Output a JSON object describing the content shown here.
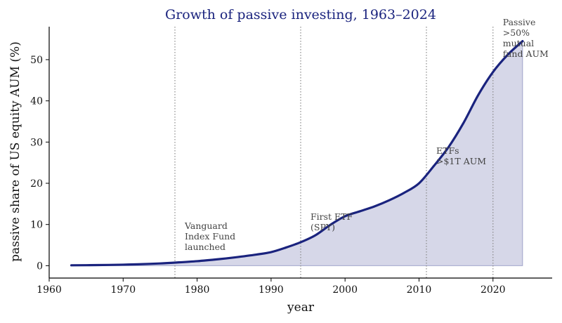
{
  "chart_data": {
    "type": "area",
    "title": "Growth of passive investing, 1963–2024",
    "xlabel": "year",
    "ylabel": "passive share of US equity AUM (%)",
    "xlim": [
      1960,
      2028
    ],
    "ylim": [
      -3,
      58
    ],
    "xticks": [
      1960,
      1970,
      1980,
      1990,
      2000,
      2010,
      2020
    ],
    "yticks": [
      0,
      10,
      20,
      30,
      40,
      50
    ],
    "grid": false,
    "colors": {
      "line": "#1a237e",
      "fill": "#1a237e",
      "vline": "#888888",
      "title": "#1a237e"
    },
    "series": [
      {
        "name": "",
        "x": [
          1963,
          1965,
          1968,
          1970,
          1972,
          1975,
          1977,
          1980,
          1983,
          1985,
          1988,
          1990,
          1992,
          1994,
          1996,
          1998,
          2000,
          2002,
          2004,
          2006,
          2008,
          2010,
          2012,
          2014,
          2016,
          2018,
          2020,
          2022,
          2024
        ],
        "y": [
          0.1,
          0.12,
          0.18,
          0.25,
          0.35,
          0.55,
          0.75,
          1.1,
          1.6,
          2.0,
          2.7,
          3.3,
          4.4,
          5.7,
          7.4,
          9.9,
          12.0,
          13.2,
          14.4,
          15.9,
          17.7,
          20.0,
          24.2,
          28.8,
          34.6,
          41.4,
          47.0,
          51.2,
          54.5
        ]
      }
    ],
    "annotations": [
      {
        "x": 1977,
        "text": [
          "Vanguard",
          "Index Fund",
          "launched"
        ]
      },
      {
        "x": 1994,
        "text": [
          "First ETF",
          "(SPY)"
        ]
      },
      {
        "x": 2011,
        "text": [
          "ETFs",
          ">$1T AUM"
        ]
      },
      {
        "x": 2020,
        "text": [
          "Passive",
          ">50%",
          "mutual",
          "fund AUM"
        ]
      }
    ]
  }
}
